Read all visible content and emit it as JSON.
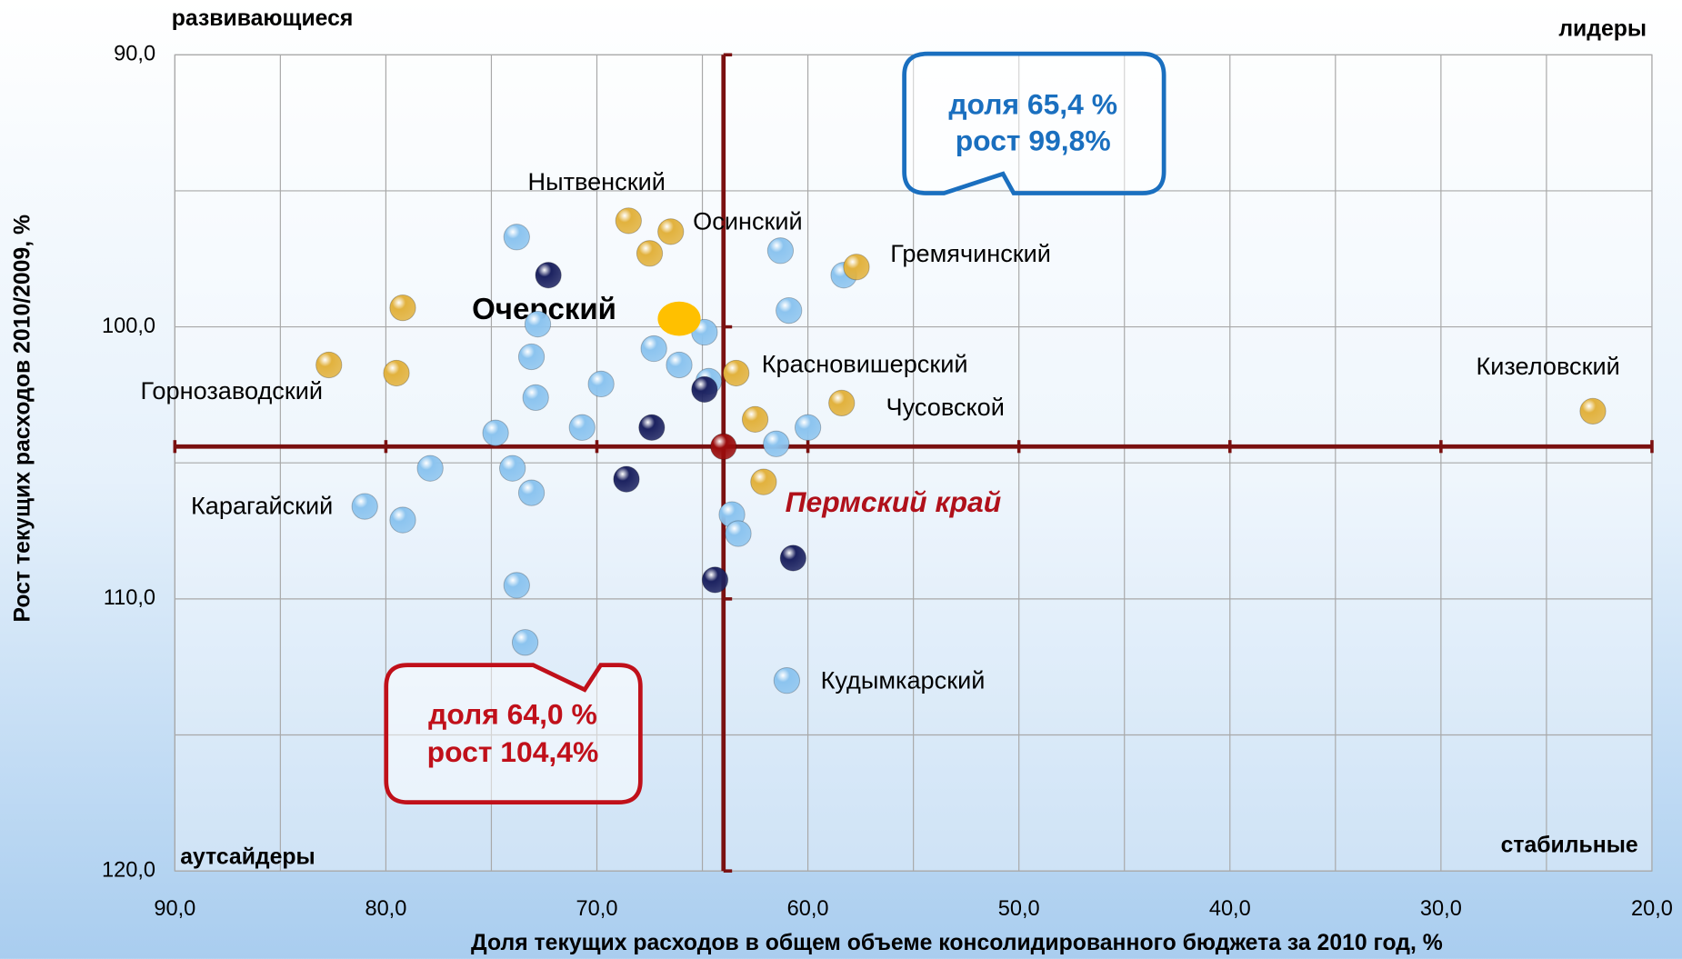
{
  "chart_data": {
    "type": "scatter",
    "xlabel": "Доля текущих расходов в общем объеме консолидированного бюджета за 2010 год, %",
    "ylabel": "Рост текущих расходов 2010/2009, %",
    "xlim": [
      90,
      20
    ],
    "ylim": [
      90,
      120
    ],
    "xticks": [
      {
        "value": 90,
        "label": "90,0"
      },
      {
        "value": 80,
        "label": "80,0"
      },
      {
        "value": 70,
        "label": "70,0"
      },
      {
        "value": 60,
        "label": "60,0"
      },
      {
        "value": 50,
        "label": "50,0"
      },
      {
        "value": 40,
        "label": "40,0"
      },
      {
        "value": 30,
        "label": "30,0"
      },
      {
        "value": 20,
        "label": "20,0"
      }
    ],
    "yticks": [
      {
        "value": 90,
        "label": "90,0"
      },
      {
        "value": 100,
        "label": "100,0"
      },
      {
        "value": 110,
        "label": "110,0"
      },
      {
        "value": 120,
        "label": "120,0"
      }
    ],
    "x_minor_grid": [
      85,
      75,
      65,
      55,
      45,
      35,
      25
    ],
    "y_minor_grid": [
      95,
      105,
      115
    ],
    "grid": true,
    "quadrants": [
      "развивающиеся",
      "лидеры",
      "аутсайдеры",
      "стабильные"
    ],
    "callouts": [
      {
        "lines": [
          "доля 65,4 %",
          "рост  99,8%"
        ],
        "color": "#1a6fbf"
      },
      {
        "lines": [
          "доля 64,0 %",
          "рост 104,4%"
        ],
        "color": "#c0101a"
      }
    ],
    "point_labels": [
      "Нытвенский",
      "Осинский",
      "Гремячинский",
      "Очерский",
      "Красновишерский",
      "Горнозаводский",
      "Чусовской",
      "Кизеловский",
      "Карагайский",
      "Пермский край",
      "Кудымкарский"
    ],
    "series": [
      {
        "color": "#8cc4ef",
        "x": [
          73.8,
          61.3,
          58.3,
          60.9,
          72.8,
          64.9,
          73.1,
          67.3,
          66.1,
          64.7,
          69.8,
          72.9,
          70.7,
          74.8,
          60.0,
          61.5,
          77.9,
          74.0,
          73.1,
          81.0,
          79.2,
          63.6,
          63.3,
          73.8,
          73.4,
          61.0
        ],
        "values": [
          96.7,
          97.2,
          98.1,
          99.4,
          99.9,
          100.2,
          101.1,
          100.8,
          101.4,
          102.0,
          102.1,
          102.6,
          103.7,
          103.9,
          103.7,
          104.3,
          105.2,
          105.2,
          106.1,
          106.6,
          107.1,
          106.9,
          107.6,
          109.5,
          111.6,
          113.0
        ]
      },
      {
        "color": "#e2b23e",
        "x": [
          68.5,
          66.5,
          67.5,
          57.7,
          79.2,
          82.7,
          79.5,
          63.4,
          58.4,
          62.5,
          62.1,
          22.8
        ],
        "values": [
          96.1,
          96.5,
          97.3,
          97.8,
          99.3,
          101.4,
          101.7,
          101.7,
          102.8,
          103.4,
          105.7,
          103.1
        ]
      },
      {
        "color": "#1c2260",
        "x": [
          72.3,
          64.9,
          67.4,
          68.6,
          60.7,
          64.4
        ],
        "values": [
          98.1,
          102.3,
          103.7,
          105.6,
          108.5,
          109.3
        ]
      },
      {
        "color": "#ffc000",
        "x": [
          66.1
        ],
        "values": [
          99.7
        ]
      },
      {
        "color": "#9a0c0c",
        "x": [
          64.0
        ],
        "values": [
          104.4
        ]
      }
    ]
  }
}
